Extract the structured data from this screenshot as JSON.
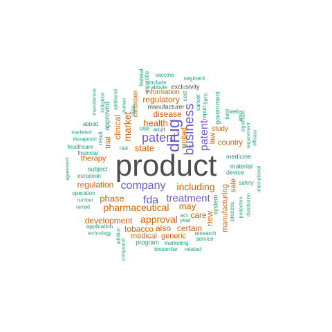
{
  "colors": {
    "gray": "#4d4d4d",
    "purple": "#6a5acd",
    "orange": "#d95f02",
    "teal": "#1b9e77"
  },
  "words": {
    "product": "product",
    "drug": "drug",
    "company": "company",
    "business": "business",
    "patent": "patent",
    "fda": "fda",
    "treatment": "treatment",
    "patent2": "patent",
    "pharmaceutical": "pharmaceutical",
    "including": "including",
    "approval": "approval",
    "health": "health",
    "market": "market",
    "clinical": "clinical",
    "state": "state",
    "disease": "disease",
    "regulatory": "regulatory",
    "may": "may",
    "phase": "phase",
    "regulation": "regulation",
    "development": "development",
    "tobacco": "tobacco",
    "also": "also",
    "certain": "certain",
    "medical": "medical",
    "generic": "generic",
    "care": "care",
    "new": "new",
    "country": "country",
    "united": "united",
    "law": "law",
    "sale": "sale",
    "manufacturing": "manufacturing",
    "information": "information",
    "exclusivity": "exclusivity",
    "manufacturer": "manufacturer",
    "study": "study",
    "trial": "trial",
    "therapy": "therapy",
    "approved": "approved",
    "candidate": "candidate",
    "vaccine": "vaccine",
    "segment": "segment",
    "include": "include",
    "abbvie": "abbvie",
    "cigarette": "cigarette",
    "federal": "federal",
    "manufacture": "manufacture",
    "indication": "indication",
    "additional": "additional",
    "human": "human",
    "data": "data",
    "use": "use",
    "adult": "adult",
    "price": "price",
    "cost": "cost",
    "cancer": "cancer",
    "form": "form",
    "report": "report",
    "government": "government",
    "item": "item",
    "well": "well",
    "significant": "significant",
    "efficacy": "efficacy",
    "requirement": "requirement",
    "also2": "also",
    "abbott": "abbott",
    "marketed": "marketed",
    "therapeutic": "therapeutic",
    "healthcare": "healthcare",
    "financial": "financial",
    "result": "result",
    "risk": "risk",
    "agreement": "agreement",
    "subject": "subject",
    "european": "european",
    "operation": "operation",
    "number": "number",
    "rampd": "rampd",
    "application": "application",
    "technology": "technology",
    "addition": "addition",
    "compound": "compound",
    "program": "program",
    "marketing": "marketing",
    "biosimilar": "biosimilar",
    "related": "related",
    "research": "research",
    "service": "service",
    "act": "act",
    "year": "year",
    "system": "system",
    "process": "process",
    "protection": "protection",
    "distribution": "distribution",
    "international": "international",
    "safety": "safety",
    "material": "material",
    "device": "device",
    "medicine": "medicine"
  }
}
